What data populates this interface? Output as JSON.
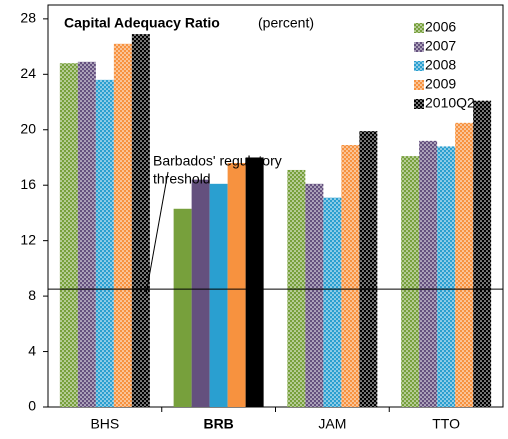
{
  "chart_data": {
    "type": "bar",
    "title": "Capital Adequacy Ratio",
    "subtitle": "(percent)",
    "categories": [
      "BHS",
      "BRB",
      "JAM",
      "TTO"
    ],
    "highlight": "BRB",
    "series": [
      {
        "name": "2006",
        "color": "#77a03c",
        "values": [
          24.8,
          14.3,
          17.1,
          18.1
        ]
      },
      {
        "name": "2007",
        "color": "#64507e",
        "values": [
          24.9,
          16.4,
          16.1,
          19.2
        ]
      },
      {
        "name": "2008",
        "color": "#2a9fd0",
        "values": [
          23.6,
          16.1,
          15.1,
          18.8
        ]
      },
      {
        "name": "2009",
        "color": "#f7923f",
        "values": [
          26.2,
          17.6,
          18.9,
          20.5
        ]
      },
      {
        "name": "2010Q2",
        "color": "#000000",
        "values": [
          26.9,
          18.0,
          19.9,
          22.1
        ]
      }
    ],
    "ylim": [
      0,
      29
    ],
    "yticks": [
      0,
      4,
      8,
      12,
      16,
      20,
      24,
      28
    ],
    "threshold": 8.5,
    "annotation": [
      "Barbados' regulatory",
      "threshold"
    ],
    "legend": "top-right",
    "grid": false
  }
}
